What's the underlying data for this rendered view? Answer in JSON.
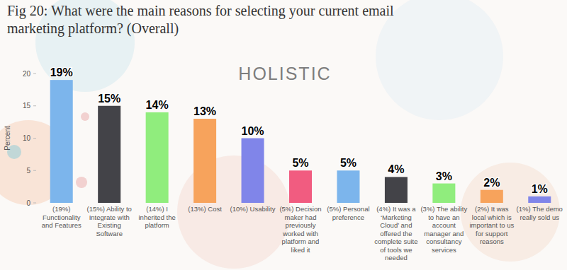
{
  "chart_data": {
    "type": "bar",
    "title": "Fig 20: What were the main reasons for selecting your current email marketing platform? (Overall)",
    "y_label": "Percent",
    "annotations": [
      "HOLISTIC"
    ],
    "categories": [
      "(19%) Functionality and Features",
      "(15%) Ability to Integrate with Existing Software",
      "(14%) I inherited the platform",
      "(13%) Cost",
      "(10%) Usability",
      "(5%) Decision maker had previously worked with platform and liked it",
      "(5%) Personal preference",
      "(4%) It was a ‘Marketing Cloud’ and offered the complete suite of tools we needed",
      "(3%) The ability to have an account manager and consultancy services",
      "(2%) It was local which is important to us for support reasons",
      "(1%) The demo really sold us"
    ],
    "values": [
      19,
      15,
      14,
      13,
      10,
      5,
      5,
      4,
      3,
      2,
      1
    ],
    "value_labels": [
      "19%",
      "15%",
      "14%",
      "13%",
      "10%",
      "5%",
      "5%",
      "4%",
      "3%",
      "2%",
      "1%"
    ],
    "colors": [
      "#7cb5ec",
      "#434348",
      "#90ed7d",
      "#f7a35c",
      "#8085e9",
      "#f15c80",
      "#7cb5ec",
      "#434348",
      "#90ed7d",
      "#f7a35c",
      "#8085e9"
    ],
    "ylim": [
      0,
      20
    ],
    "yticks": [
      0,
      5,
      10,
      15,
      20
    ],
    "grid": false,
    "data_labels": true
  }
}
